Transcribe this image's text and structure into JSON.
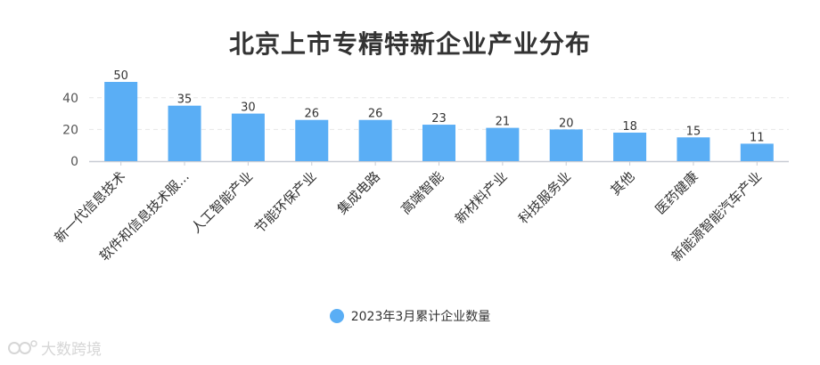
{
  "chart_data": {
    "type": "bar",
    "title": "北京上市专精特新企业产业分布",
    "categories": [
      "新一代信息技术",
      "软件和信息技术服...",
      "人工智能产业",
      "节能环保产业",
      "集成电路",
      "高端智能",
      "新材料产业",
      "科技服务业",
      "其他",
      "医药健康",
      "新能源智能汽车产业"
    ],
    "series": [
      {
        "name": "2023年3月累计企业数量",
        "values": [
          50,
          35,
          30,
          26,
          26,
          23,
          21,
          20,
          18,
          15,
          11
        ]
      }
    ],
    "y_ticks": [
      "0",
      "20",
      "40"
    ],
    "ylim": [
      0,
      50
    ],
    "grid": true,
    "legend": "bottom-center",
    "colors": {
      "bar": "#5aaef5",
      "grid": "#e6e6e6",
      "axis": "#c8ccd4"
    }
  },
  "watermark": {
    "text": "大数跨境"
  }
}
